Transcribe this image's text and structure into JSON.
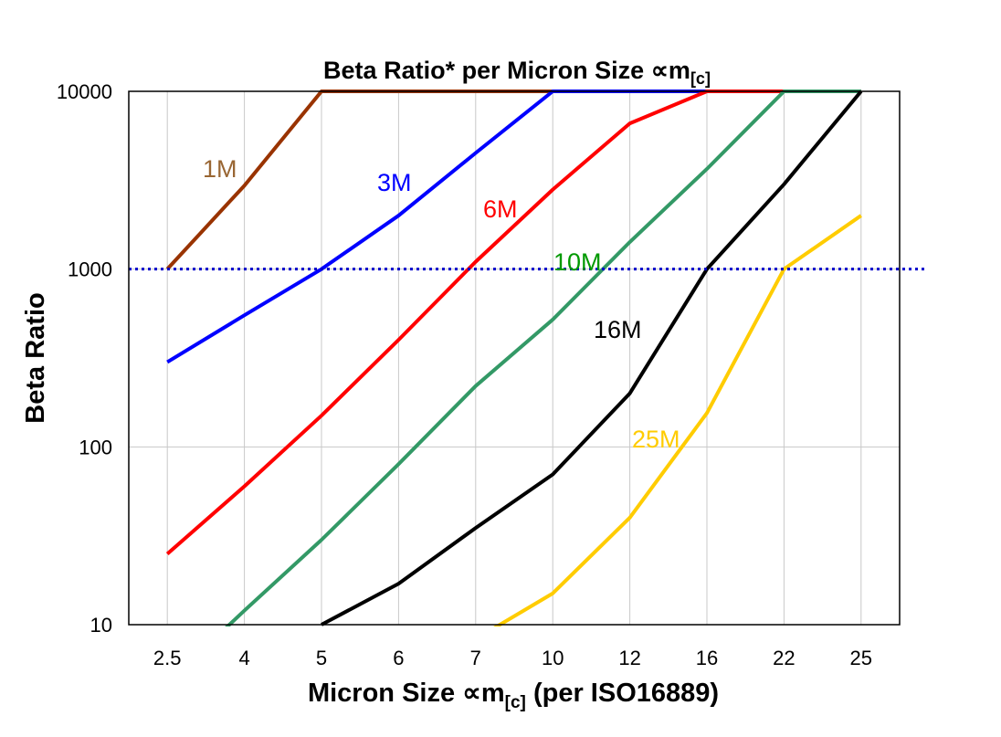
{
  "chart_data": {
    "type": "line",
    "title": "Beta Ratio* per Micron Size ∝m",
    "title_subscript": "[c]",
    "xlabel": "Micron Size ∝m",
    "xlabel_subscript": "[c]",
    "xlabel_suffix": " (per ISO16889)",
    "ylabel": "Beta Ratio",
    "y_scale": "log",
    "ylim": [
      10,
      10000
    ],
    "y_ticks": [
      "10",
      "100",
      "1000",
      "10000"
    ],
    "categories": [
      "2.5",
      "4",
      "5",
      "6",
      "7",
      "10",
      "12",
      "16",
      "22",
      "25"
    ],
    "grid": "vertical lines at categories, horizontal at each decade",
    "reference_line": {
      "value": 1000,
      "style": "dotted",
      "color": "#0000CC"
    },
    "series": [
      {
        "name": "1M",
        "color": "#993300",
        "label_color": "#996633",
        "values": [
          1000,
          2950,
          10000,
          10000,
          10000,
          10000,
          10000,
          10000,
          10000,
          10000
        ]
      },
      {
        "name": "3M",
        "color": "#0000FF",
        "label_color": "#0000FF",
        "values": [
          300,
          550,
          1000,
          2000,
          4500,
          10000,
          10000,
          10000,
          10000,
          10000
        ]
      },
      {
        "name": "6M",
        "color": "#FF0000",
        "label_color": "#FF0000",
        "values": [
          25,
          60,
          150,
          400,
          1100,
          2800,
          6600,
          10000,
          10000,
          10000
        ]
      },
      {
        "name": "10M",
        "color": "#339966",
        "label_color": "#009900",
        "values": [
          4.7,
          12,
          30,
          80,
          220,
          520,
          1420,
          3660,
          10000,
          10000
        ]
      },
      {
        "name": "16M",
        "color": "#000000",
        "label_color": "#000000",
        "values": [
          null,
          null,
          10,
          17,
          35,
          70,
          200,
          1000,
          3000,
          10000
        ]
      },
      {
        "name": "25M",
        "color": "#FFCC00",
        "label_color": "#FFCC00",
        "values": [
          null,
          null,
          null,
          null,
          8.3,
          15,
          40,
          155,
          1000,
          2000
        ]
      }
    ]
  }
}
